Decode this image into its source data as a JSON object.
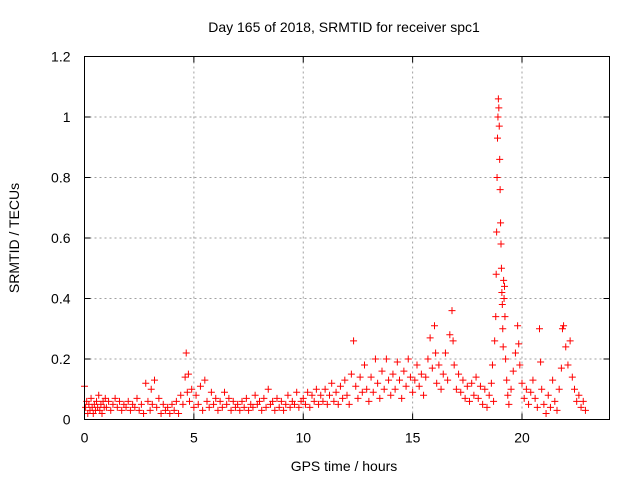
{
  "chart_data": {
    "type": "scatter",
    "title": "Day 165 of 2018, SRMTID for receiver spc1",
    "xlabel": "GPS time / hours",
    "ylabel": "SRMTID / TECUs",
    "xlim": [
      0,
      24
    ],
    "ylim": [
      0,
      1.2
    ],
    "xticks": [
      0,
      5,
      10,
      15,
      20
    ],
    "xtick_labels": [
      "0",
      "5",
      "10",
      "15",
      "20"
    ],
    "yticks": [
      0,
      0.2,
      0.4,
      0.6,
      0.8,
      1,
      1.2
    ],
    "ytick_labels": [
      "0",
      "0.2",
      "0.4",
      "0.6",
      "0.8",
      "1",
      "1.2"
    ],
    "grid": true,
    "marker": "plus",
    "series": [
      {
        "name": "SRMTID",
        "color": "#ff0000",
        "points": [
          [
            0.0,
            0.11
          ],
          [
            0.05,
            0.04
          ],
          [
            0.1,
            0.06
          ],
          [
            0.15,
            0.02
          ],
          [
            0.2,
            0.05
          ],
          [
            0.25,
            0.03
          ],
          [
            0.3,
            0.07
          ],
          [
            0.35,
            0.04
          ],
          [
            0.4,
            0.02
          ],
          [
            0.45,
            0.05
          ],
          [
            0.5,
            0.03
          ],
          [
            0.55,
            0.06
          ],
          [
            0.6,
            0.04
          ],
          [
            0.65,
            0.08
          ],
          [
            0.7,
            0.03
          ],
          [
            0.75,
            0.05
          ],
          [
            0.8,
            0.02
          ],
          [
            0.85,
            0.06
          ],
          [
            0.9,
            0.04
          ],
          [
            0.95,
            0.07
          ],
          [
            1.0,
            0.04
          ],
          [
            1.1,
            0.06
          ],
          [
            1.2,
            0.03
          ],
          [
            1.3,
            0.05
          ],
          [
            1.4,
            0.07
          ],
          [
            1.5,
            0.04
          ],
          [
            1.6,
            0.06
          ],
          [
            1.7,
            0.03
          ],
          [
            1.8,
            0.05
          ],
          [
            1.9,
            0.04
          ],
          [
            2.0,
            0.06
          ],
          [
            2.1,
            0.03
          ],
          [
            2.2,
            0.05
          ],
          [
            2.3,
            0.04
          ],
          [
            2.4,
            0.07
          ],
          [
            2.5,
            0.03
          ],
          [
            2.6,
            0.05
          ],
          [
            2.7,
            0.02
          ],
          [
            2.8,
            0.12
          ],
          [
            2.9,
            0.06
          ],
          [
            3.0,
            0.03
          ],
          [
            3.05,
            0.1
          ],
          [
            3.1,
            0.05
          ],
          [
            3.2,
            0.13
          ],
          [
            3.3,
            0.04
          ],
          [
            3.4,
            0.07
          ],
          [
            3.5,
            0.02
          ],
          [
            3.6,
            0.05
          ],
          [
            3.7,
            0.03
          ],
          [
            3.8,
            0.04
          ],
          [
            3.9,
            0.02
          ],
          [
            4.0,
            0.05
          ],
          [
            4.1,
            0.03
          ],
          [
            4.2,
            0.06
          ],
          [
            4.3,
            0.02
          ],
          [
            4.4,
            0.08
          ],
          [
            4.5,
            0.05
          ],
          [
            4.6,
            0.14
          ],
          [
            4.65,
            0.22
          ],
          [
            4.7,
            0.09
          ],
          [
            4.75,
            0.15
          ],
          [
            4.8,
            0.06
          ],
          [
            4.9,
            0.1
          ],
          [
            5.0,
            0.04
          ],
          [
            5.1,
            0.08
          ],
          [
            5.2,
            0.05
          ],
          [
            5.3,
            0.11
          ],
          [
            5.4,
            0.03
          ],
          [
            5.5,
            0.13
          ],
          [
            5.6,
            0.06
          ],
          [
            5.7,
            0.04
          ],
          [
            5.8,
            0.09
          ],
          [
            5.9,
            0.05
          ],
          [
            6.0,
            0.07
          ],
          [
            6.1,
            0.03
          ],
          [
            6.2,
            0.06
          ],
          [
            6.3,
            0.04
          ],
          [
            6.4,
            0.09
          ],
          [
            6.5,
            0.05
          ],
          [
            6.6,
            0.07
          ],
          [
            6.7,
            0.03
          ],
          [
            6.8,
            0.06
          ],
          [
            6.9,
            0.04
          ],
          [
            7.0,
            0.05
          ],
          [
            7.1,
            0.03
          ],
          [
            7.2,
            0.06
          ],
          [
            7.3,
            0.04
          ],
          [
            7.4,
            0.07
          ],
          [
            7.5,
            0.03
          ],
          [
            7.6,
            0.05
          ],
          [
            7.7,
            0.04
          ],
          [
            7.8,
            0.08
          ],
          [
            7.9,
            0.05
          ],
          [
            8.0,
            0.06
          ],
          [
            8.1,
            0.03
          ],
          [
            8.2,
            0.07
          ],
          [
            8.3,
            0.04
          ],
          [
            8.4,
            0.1
          ],
          [
            8.5,
            0.05
          ],
          [
            8.6,
            0.06
          ],
          [
            8.7,
            0.03
          ],
          [
            8.8,
            0.07
          ],
          [
            8.9,
            0.04
          ],
          [
            9.0,
            0.06
          ],
          [
            9.1,
            0.03
          ],
          [
            9.2,
            0.05
          ],
          [
            9.3,
            0.08
          ],
          [
            9.4,
            0.04
          ],
          [
            9.5,
            0.06
          ],
          [
            9.6,
            0.05
          ],
          [
            9.7,
            0.09
          ],
          [
            9.8,
            0.04
          ],
          [
            9.9,
            0.06
          ],
          [
            10.0,
            0.07
          ],
          [
            10.1,
            0.05
          ],
          [
            10.2,
            0.09
          ],
          [
            10.3,
            0.04
          ],
          [
            10.4,
            0.08
          ],
          [
            10.5,
            0.06
          ],
          [
            10.6,
            0.1
          ],
          [
            10.7,
            0.05
          ],
          [
            10.8,
            0.08
          ],
          [
            10.9,
            0.06
          ],
          [
            11.0,
            0.1
          ],
          [
            11.1,
            0.05
          ],
          [
            11.2,
            0.08
          ],
          [
            11.3,
            0.12
          ],
          [
            11.4,
            0.06
          ],
          [
            11.5,
            0.09
          ],
          [
            11.6,
            0.05
          ],
          [
            11.7,
            0.11
          ],
          [
            11.8,
            0.07
          ],
          [
            11.9,
            0.13
          ],
          [
            12.0,
            0.08
          ],
          [
            12.1,
            0.05
          ],
          [
            12.2,
            0.15
          ],
          [
            12.3,
            0.26
          ],
          [
            12.4,
            0.11
          ],
          [
            12.5,
            0.07
          ],
          [
            12.6,
            0.14
          ],
          [
            12.7,
            0.09
          ],
          [
            12.8,
            0.18
          ],
          [
            12.9,
            0.1
          ],
          [
            13.0,
            0.06
          ],
          [
            13.1,
            0.14
          ],
          [
            13.2,
            0.09
          ],
          [
            13.3,
            0.2
          ],
          [
            13.4,
            0.12
          ],
          [
            13.5,
            0.07
          ],
          [
            13.6,
            0.16
          ],
          [
            13.7,
            0.1
          ],
          [
            13.8,
            0.2
          ],
          [
            13.9,
            0.13
          ],
          [
            14.0,
            0.08
          ],
          [
            14.1,
            0.15
          ],
          [
            14.2,
            0.1
          ],
          [
            14.3,
            0.19
          ],
          [
            14.4,
            0.13
          ],
          [
            14.5,
            0.07
          ],
          [
            14.6,
            0.16
          ],
          [
            14.7,
            0.11
          ],
          [
            14.8,
            0.2
          ],
          [
            14.9,
            0.14
          ],
          [
            15.0,
            0.09
          ],
          [
            15.1,
            0.13
          ],
          [
            15.2,
            0.18
          ],
          [
            15.3,
            0.11
          ],
          [
            15.4,
            0.15
          ],
          [
            15.5,
            0.08
          ],
          [
            15.6,
            0.14
          ],
          [
            15.7,
            0.2
          ],
          [
            15.8,
            0.27
          ],
          [
            15.9,
            0.17
          ],
          [
            16.0,
            0.31
          ],
          [
            16.05,
            0.22
          ],
          [
            16.1,
            0.12
          ],
          [
            16.2,
            0.18
          ],
          [
            16.3,
            0.1
          ],
          [
            16.4,
            0.15
          ],
          [
            16.5,
            0.22
          ],
          [
            16.6,
            0.13
          ],
          [
            16.7,
            0.28
          ],
          [
            16.8,
            0.36
          ],
          [
            16.85,
            0.26
          ],
          [
            16.9,
            0.18
          ],
          [
            17.0,
            0.1
          ],
          [
            17.1,
            0.15
          ],
          [
            17.2,
            0.09
          ],
          [
            17.3,
            0.13
          ],
          [
            17.4,
            0.07
          ],
          [
            17.5,
            0.11
          ],
          [
            17.6,
            0.06
          ],
          [
            17.7,
            0.12
          ],
          [
            17.8,
            0.08
          ],
          [
            17.9,
            0.14
          ],
          [
            18.0,
            0.07
          ],
          [
            18.1,
            0.11
          ],
          [
            18.2,
            0.05
          ],
          [
            18.3,
            0.1
          ],
          [
            18.4,
            0.04
          ],
          [
            18.5,
            0.08
          ],
          [
            18.6,
            0.12
          ],
          [
            18.65,
            0.18
          ],
          [
            18.7,
            0.06
          ],
          [
            18.75,
            0.26
          ],
          [
            18.8,
            0.34
          ],
          [
            18.82,
            0.48
          ],
          [
            18.84,
            0.62
          ],
          [
            18.86,
            0.8
          ],
          [
            18.88,
            0.93
          ],
          [
            18.9,
            1.0
          ],
          [
            18.92,
            1.06
          ],
          [
            18.94,
            1.03
          ],
          [
            18.96,
            0.97
          ],
          [
            18.98,
            0.86
          ],
          [
            19.0,
            0.76
          ],
          [
            19.02,
            0.65
          ],
          [
            19.04,
            0.58
          ],
          [
            19.06,
            0.5
          ],
          [
            19.08,
            0.42
          ],
          [
            19.1,
            0.38
          ],
          [
            19.12,
            0.3
          ],
          [
            19.14,
            0.24
          ],
          [
            19.16,
            0.46
          ],
          [
            19.18,
            0.4
          ],
          [
            19.2,
            0.44
          ],
          [
            19.22,
            0.34
          ],
          [
            19.25,
            0.2
          ],
          [
            19.3,
            0.13
          ],
          [
            19.35,
            0.08
          ],
          [
            19.4,
            0.05
          ],
          [
            19.5,
            0.1
          ],
          [
            19.6,
            0.16
          ],
          [
            19.7,
            0.22
          ],
          [
            19.8,
            0.31
          ],
          [
            19.85,
            0.25
          ],
          [
            19.9,
            0.18
          ],
          [
            20.0,
            0.12
          ],
          [
            20.1,
            0.07
          ],
          [
            20.2,
            0.1
          ],
          [
            20.3,
            0.05
          ],
          [
            20.4,
            0.09
          ],
          [
            20.5,
            0.13
          ],
          [
            20.6,
            0.07
          ],
          [
            20.7,
            0.04
          ],
          [
            20.8,
            0.3
          ],
          [
            20.85,
            0.19
          ],
          [
            20.9,
            0.1
          ],
          [
            21.0,
            0.05
          ],
          [
            21.1,
            0.02
          ],
          [
            21.2,
            0.08
          ],
          [
            21.3,
            0.04
          ],
          [
            21.4,
            0.13
          ],
          [
            21.5,
            0.06
          ],
          [
            21.6,
            0.03
          ],
          [
            21.7,
            0.1
          ],
          [
            21.8,
            0.17
          ],
          [
            21.85,
            0.3
          ],
          [
            21.9,
            0.31
          ],
          [
            22.0,
            0.24
          ],
          [
            22.1,
            0.18
          ],
          [
            22.2,
            0.26
          ],
          [
            22.3,
            0.14
          ],
          [
            22.4,
            0.1
          ],
          [
            22.5,
            0.06
          ],
          [
            22.6,
            0.08
          ],
          [
            22.7,
            0.04
          ],
          [
            22.8,
            0.06
          ],
          [
            22.9,
            0.03
          ]
        ]
      }
    ]
  }
}
